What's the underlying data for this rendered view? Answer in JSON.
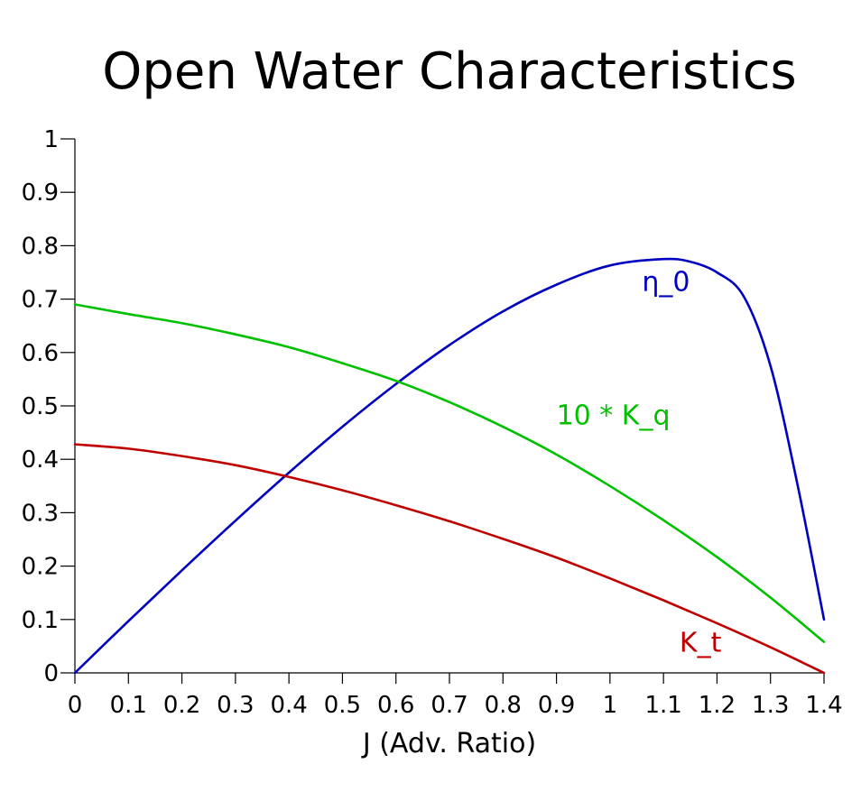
{
  "chart_data": {
    "type": "line",
    "title": "Open Water Characteristics",
    "xlabel": "J (Adv. Ratio)",
    "ylabel": "",
    "xlim": [
      0,
      1.4
    ],
    "ylim": [
      0,
      1
    ],
    "grid": false,
    "legend": "none",
    "x_ticks": [
      "0",
      "0.1",
      "0.2",
      "0.3",
      "0.4",
      "0.5",
      "0.6",
      "0.7",
      "0.8",
      "0.9",
      "1",
      "1.1",
      "1.2",
      "1.3",
      "1.4"
    ],
    "y_ticks": [
      "0",
      "0.1",
      "0.2",
      "0.3",
      "0.4",
      "0.5",
      "0.6",
      "0.7",
      "0.8",
      "0.9",
      "1"
    ],
    "series": [
      {
        "name": "η_0",
        "color": "#0000c0",
        "label_anchor": [
          1.06,
          0.715
        ],
        "x": [
          0,
          0.1,
          0.2,
          0.3,
          0.4,
          0.5,
          0.6,
          0.7,
          0.8,
          0.9,
          1.0,
          1.1,
          1.15,
          1.2,
          1.25,
          1.3,
          1.35,
          1.4
        ],
        "y": [
          0,
          0.097,
          0.192,
          0.285,
          0.375,
          0.461,
          0.541,
          0.614,
          0.677,
          0.727,
          0.763,
          0.775,
          0.77,
          0.75,
          0.705,
          0.575,
          0.355,
          0.1
        ]
      },
      {
        "name": "10 * K_q",
        "color": "#00c000",
        "label_anchor": [
          0.9,
          0.465
        ],
        "x": [
          0,
          0.1,
          0.2,
          0.3,
          0.4,
          0.5,
          0.6,
          0.7,
          0.8,
          0.9,
          1.0,
          1.1,
          1.2,
          1.3,
          1.4
        ],
        "y": [
          0.69,
          0.672,
          0.655,
          0.634,
          0.61,
          0.58,
          0.547,
          0.507,
          0.461,
          0.409,
          0.35,
          0.286,
          0.217,
          0.141,
          0.058
        ]
      },
      {
        "name": "K_t",
        "color": "#c00000",
        "label_anchor": [
          1.13,
          0.04
        ],
        "x": [
          0,
          0.1,
          0.2,
          0.3,
          0.4,
          0.5,
          0.6,
          0.7,
          0.8,
          0.9,
          1.0,
          1.1,
          1.2,
          1.3,
          1.4
        ],
        "y": [
          0.428,
          0.42,
          0.406,
          0.389,
          0.367,
          0.342,
          0.314,
          0.284,
          0.251,
          0.216,
          0.177,
          0.136,
          0.093,
          0.048,
          0.0
        ]
      }
    ]
  }
}
